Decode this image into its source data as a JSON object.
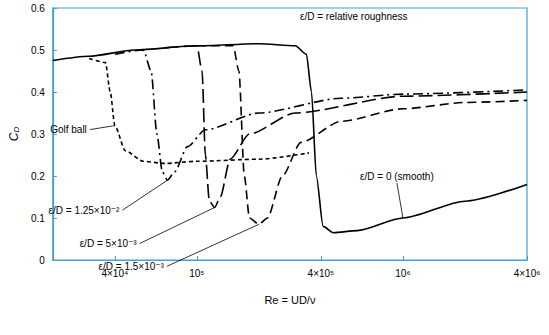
{
  "chart_data": {
    "type": "line",
    "x_label": "Re = UD/ν",
    "y_label": "CD",
    "annotations": [
      "ε/D = relative roughness"
    ],
    "log": "x",
    "grid": false,
    "xlim": [
      20000,
      4000000
    ],
    "xticks": [
      {
        "value": 40000,
        "label": "4×10⁴"
      },
      {
        "value": 100000,
        "label": "10⁵"
      },
      {
        "value": 400000,
        "label": "4×10⁵"
      },
      {
        "value": 1000000,
        "label": "10⁶"
      },
      {
        "value": 4000000,
        "label": "4×10⁶"
      }
    ],
    "ylim": [
      0,
      0.6
    ],
    "yticks": [
      0,
      0.1,
      0.2,
      0.3,
      0.4,
      0.5,
      0.6
    ],
    "series": [
      {
        "name": "ε/D = 0 (smooth)",
        "color": "#000000",
        "line_style": "solid",
        "x": [
          20000,
          30000,
          50000,
          100000,
          200000,
          300000,
          340000,
          360000,
          380000,
          410000,
          460000,
          600000,
          1000000,
          2000000,
          4000000
        ],
        "values": [
          0.475,
          0.485,
          0.5,
          0.51,
          0.515,
          0.51,
          0.49,
          0.4,
          0.2,
          0.08,
          0.065,
          0.07,
          0.1,
          0.14,
          0.18
        ]
      },
      {
        "name": "ε/D = 1.5×10⁻³",
        "color": "#000000",
        "line_style": "dashed",
        "x": [
          100000,
          150000,
          160000,
          170000,
          180000,
          200000,
          220000,
          260000,
          320000,
          500000,
          1000000,
          2000000,
          4000000
        ],
        "values": [
          0.51,
          0.51,
          0.45,
          0.2,
          0.1,
          0.085,
          0.1,
          0.2,
          0.28,
          0.33,
          0.36,
          0.375,
          0.38
        ]
      },
      {
        "name": "ε/D = 5×10⁻³",
        "color": "#000000",
        "line_style": "long_dashed",
        "x": [
          70000,
          100000,
          106000,
          110000,
          115000,
          122000,
          130000,
          145000,
          180000,
          300000,
          1000000,
          4000000
        ],
        "values": [
          0.505,
          0.51,
          0.45,
          0.25,
          0.14,
          0.125,
          0.15,
          0.24,
          0.3,
          0.35,
          0.39,
          0.4
        ]
      },
      {
        "name": "ε/D = 1.25×10⁻²",
        "color": "#000000",
        "line_style": "dashdot",
        "x": [
          40000,
          55000,
          60000,
          64000,
          68000,
          72000,
          78000,
          90000,
          110000,
          200000,
          500000,
          1000000,
          4000000
        ],
        "values": [
          0.49,
          0.5,
          0.45,
          0.3,
          0.21,
          0.19,
          0.21,
          0.27,
          0.31,
          0.35,
          0.385,
          0.395,
          0.405
        ]
      },
      {
        "name": "Golf ball",
        "color": "#000000",
        "line_style": "short_dashed",
        "x": [
          30000,
          36000,
          38000,
          40000,
          45000,
          55000,
          70000,
          100000,
          200000,
          350000
        ],
        "values": [
          0.48,
          0.47,
          0.4,
          0.32,
          0.26,
          0.235,
          0.23,
          0.235,
          0.24,
          0.255
        ]
      }
    ]
  }
}
